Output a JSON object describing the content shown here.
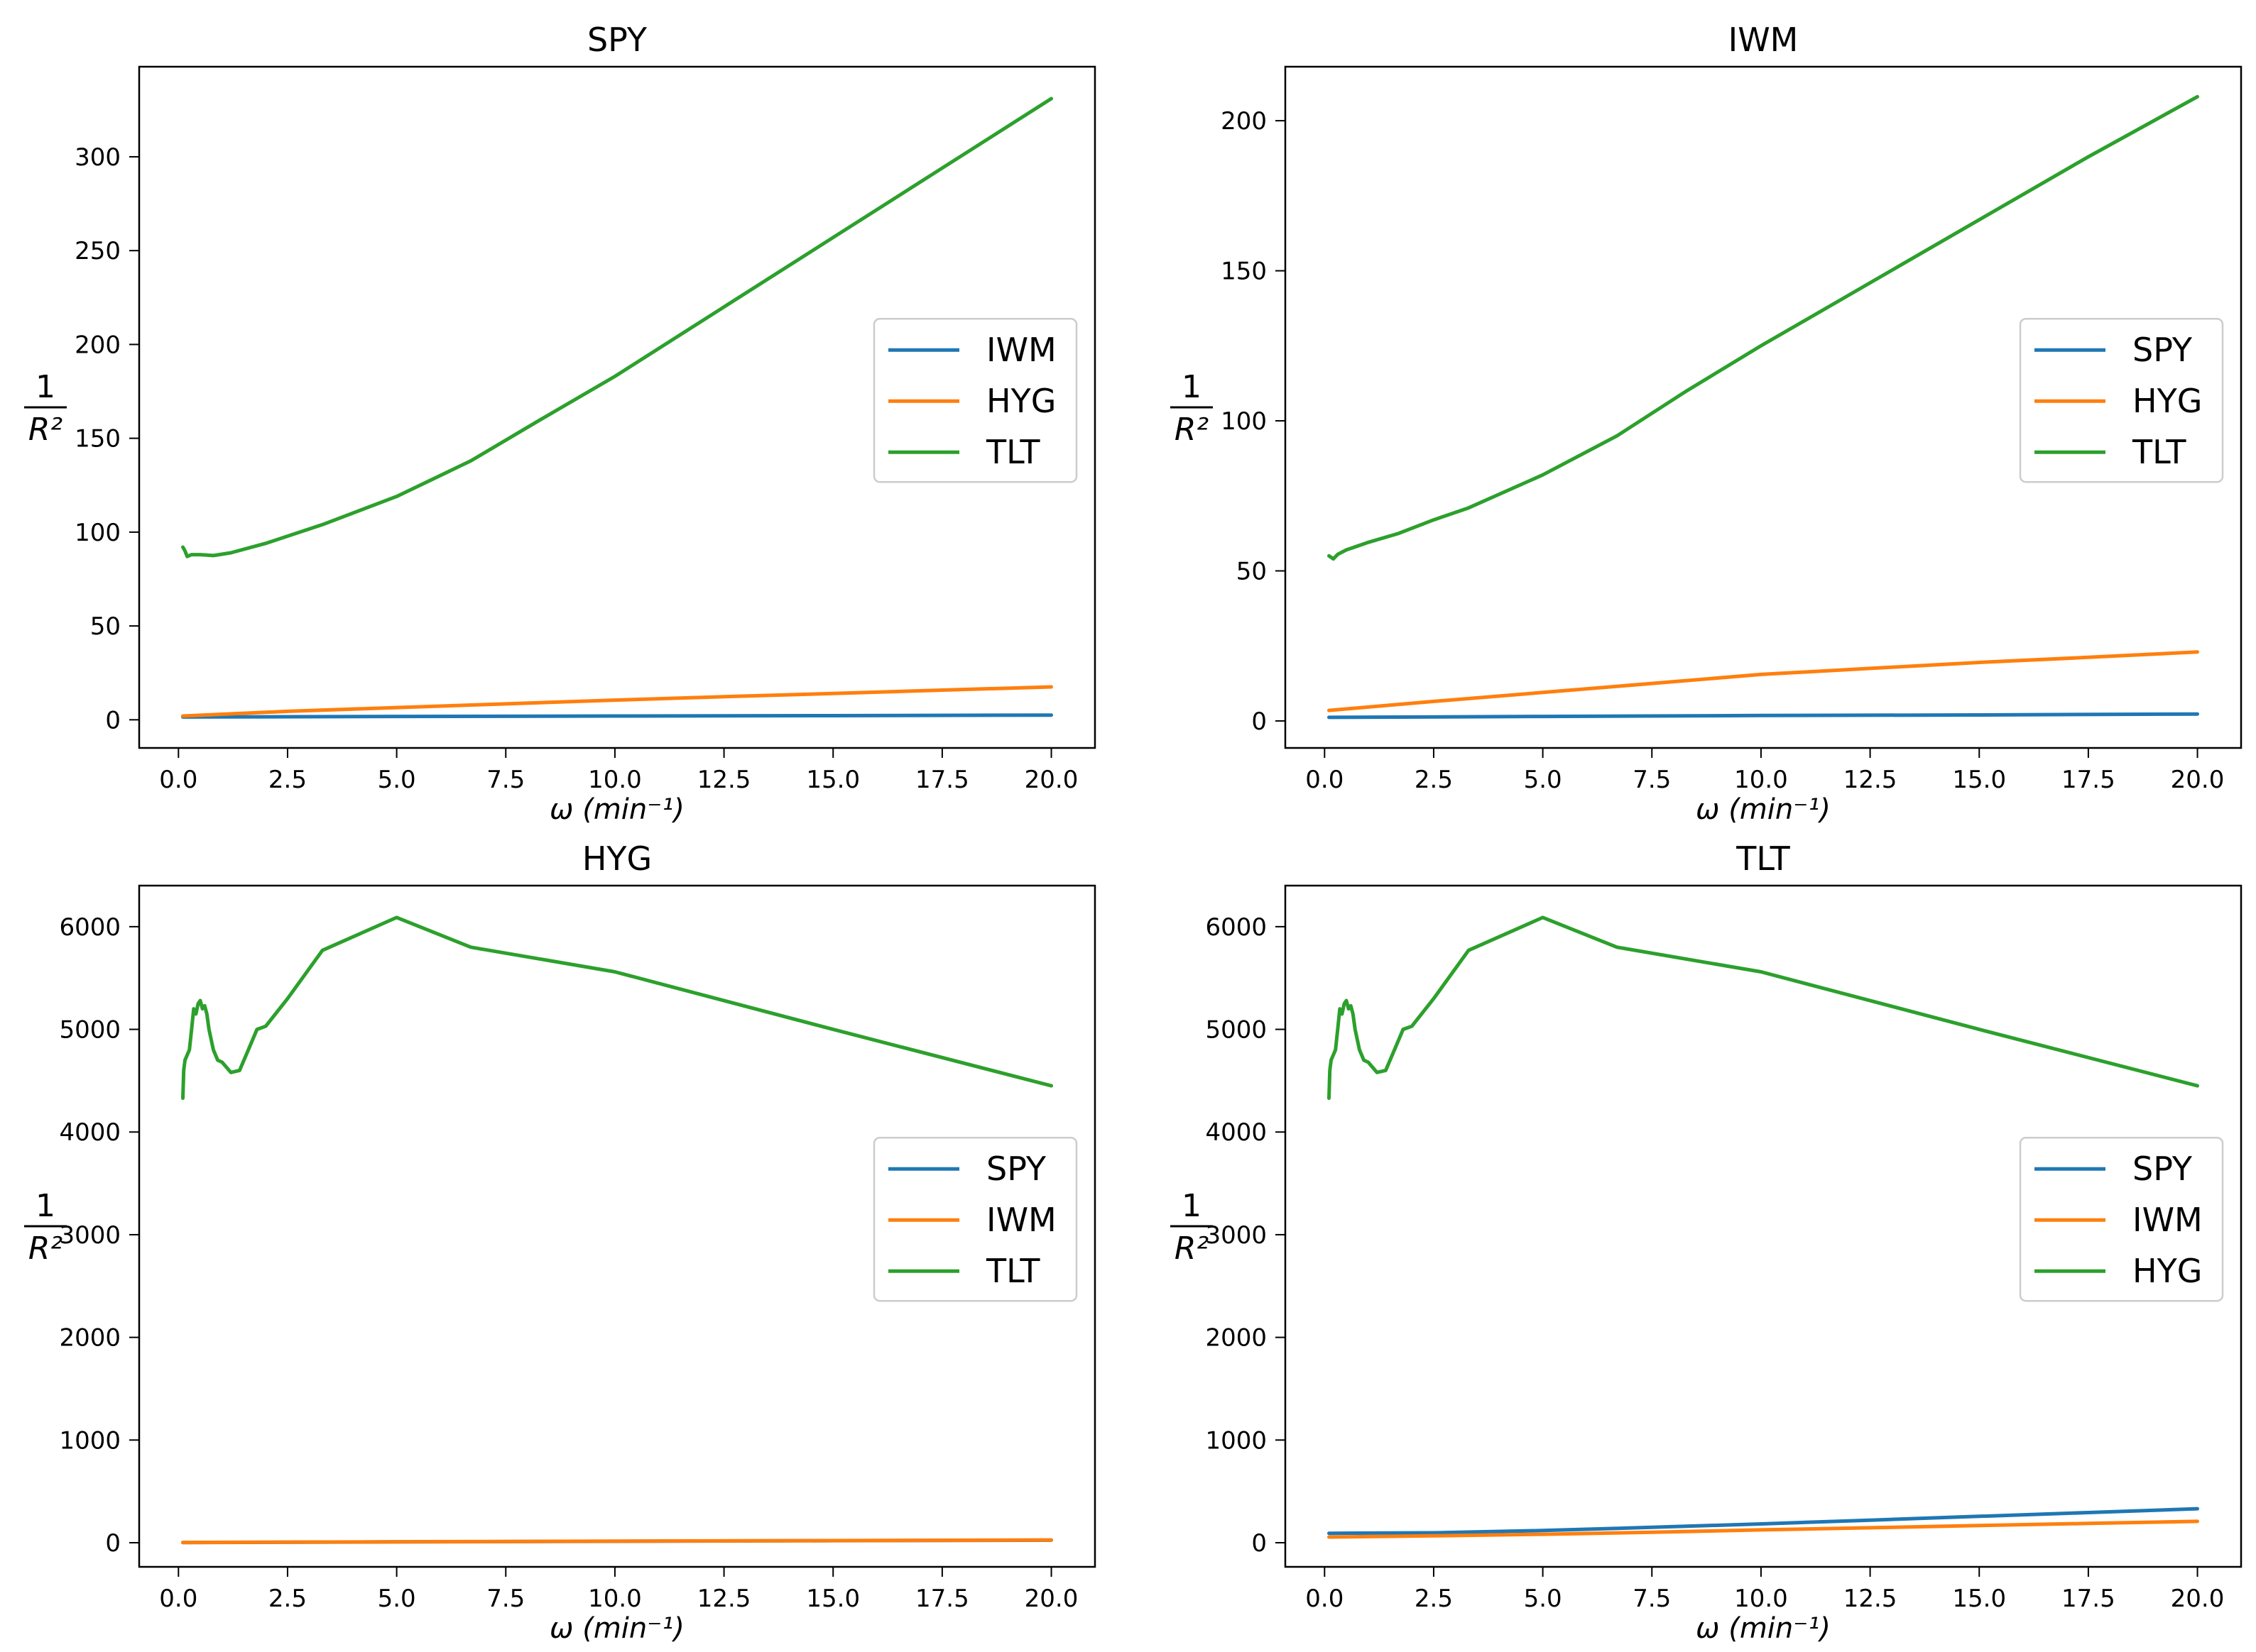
{
  "figure": {
    "title": ""
  },
  "colors": {
    "blue": "#1f77b4",
    "orange": "#ff7f0e",
    "green": "#2ca02c"
  },
  "chart_data": [
    {
      "type": "line",
      "title": "SPY",
      "xlabel": "ω (min⁻¹)",
      "ylabel": "1/R²",
      "xlim": [
        -0.9,
        21.0
      ],
      "ylim": [
        -15,
        348
      ],
      "xticks": [
        "0.0",
        "2.5",
        "5.0",
        "7.5",
        "10.0",
        "12.5",
        "15.0",
        "17.5",
        "20.0"
      ],
      "yticks": [
        "0",
        "50",
        "100",
        "150",
        "200",
        "250",
        "300"
      ],
      "legend_position": "center-right",
      "series": [
        {
          "name": "IWM",
          "color": "#1f77b4",
          "x": [
            0.1,
            5,
            10,
            15,
            20
          ],
          "y": [
            1.5,
            1.8,
            2.0,
            2.2,
            2.5
          ]
        },
        {
          "name": "HYG",
          "color": "#ff7f0e",
          "x": [
            0.1,
            2.5,
            5,
            7.5,
            10,
            12.5,
            15,
            17.5,
            20
          ],
          "y": [
            2,
            4.5,
            6.5,
            8.5,
            10.5,
            12.3,
            14,
            15.8,
            17.5
          ]
        },
        {
          "name": "TLT",
          "color": "#2ca02c",
          "x": [
            0.1,
            0.15,
            0.2,
            0.3,
            0.5,
            0.8,
            1.2,
            2.0,
            3.3,
            5.0,
            6.7,
            8.3,
            10.0,
            12.5,
            15.0,
            17.5,
            20.0
          ],
          "y": [
            92,
            90,
            87,
            88,
            88,
            87.5,
            89,
            94,
            104,
            119,
            138,
            160,
            183,
            220,
            257,
            294,
            331
          ]
        }
      ]
    },
    {
      "type": "line",
      "title": "IWM",
      "xlabel": "ω (min⁻¹)",
      "ylabel": "1/R²",
      "xlim": [
        -0.9,
        21.0
      ],
      "ylim": [
        -9,
        218
      ],
      "xticks": [
        "0.0",
        "2.5",
        "5.0",
        "7.5",
        "10.0",
        "12.5",
        "15.0",
        "17.5",
        "20.0"
      ],
      "yticks": [
        "0",
        "50",
        "100",
        "150",
        "200"
      ],
      "legend_position": "center-right",
      "series": [
        {
          "name": "SPY",
          "color": "#1f77b4",
          "x": [
            0.1,
            5,
            10,
            15,
            20
          ],
          "y": [
            1.2,
            1.5,
            1.8,
            2.0,
            2.3
          ]
        },
        {
          "name": "HYG",
          "color": "#ff7f0e",
          "x": [
            0.1,
            2.5,
            5,
            7.5,
            10,
            12.5,
            15,
            17.5,
            20
          ],
          "y": [
            3.5,
            6.5,
            9.5,
            12.5,
            15.5,
            17.5,
            19.5,
            21.2,
            23
          ]
        },
        {
          "name": "TLT",
          "color": "#2ca02c",
          "x": [
            0.1,
            0.2,
            0.3,
            0.5,
            1.0,
            1.7,
            2.5,
            3.3,
            5.0,
            6.7,
            8.3,
            10.0,
            12.5,
            15.0,
            17.5,
            20.0
          ],
          "y": [
            55,
            54,
            55.5,
            57,
            59.5,
            62.5,
            67,
            71,
            82,
            95,
            110,
            125,
            146,
            167,
            188,
            208
          ]
        }
      ]
    },
    {
      "type": "line",
      "title": "HYG",
      "xlabel": "ω (min⁻¹)",
      "ylabel": "1/R²",
      "xlim": [
        -0.9,
        21.0
      ],
      "ylim": [
        -235,
        6400
      ],
      "xticks": [
        "0.0",
        "2.5",
        "5.0",
        "7.5",
        "10.0",
        "12.5",
        "15.0",
        "17.5",
        "20.0"
      ],
      "yticks": [
        "0",
        "1000",
        "2000",
        "3000",
        "4000",
        "5000",
        "6000"
      ],
      "legend_position": "center-right",
      "series": [
        {
          "name": "SPY",
          "color": "#1f77b4",
          "x": [
            0.1,
            5,
            10,
            15,
            20
          ],
          "y": [
            2,
            8,
            14,
            20,
            25
          ]
        },
        {
          "name": "IWM",
          "color": "#ff7f0e",
          "x": [
            0.1,
            5,
            10,
            15,
            20
          ],
          "y": [
            3,
            9,
            15,
            21,
            27
          ]
        },
        {
          "name": "TLT",
          "color": "#2ca02c",
          "x": [
            0.1,
            0.12,
            0.15,
            0.2,
            0.25,
            0.3,
            0.35,
            0.4,
            0.45,
            0.5,
            0.55,
            0.6,
            0.65,
            0.7,
            0.8,
            0.9,
            1.0,
            1.2,
            1.4,
            1.6,
            1.8,
            2.0,
            2.5,
            3.3,
            5.0,
            6.7,
            10.0,
            15.0,
            20.0
          ],
          "y": [
            4330,
            4600,
            4700,
            4750,
            4800,
            5000,
            5200,
            5150,
            5250,
            5280,
            5200,
            5230,
            5150,
            5000,
            4800,
            4700,
            4680,
            4580,
            4600,
            4800,
            5000,
            5030,
            5300,
            5770,
            6090,
            5800,
            5560,
            5000,
            4450
          ]
        }
      ]
    },
    {
      "type": "line",
      "title": "TLT",
      "xlabel": "ω (min⁻¹)",
      "ylabel": "1/R²",
      "xlim": [
        -0.9,
        21.0
      ],
      "ylim": [
        -235,
        6400
      ],
      "xticks": [
        "0.0",
        "2.5",
        "5.0",
        "7.5",
        "10.0",
        "12.5",
        "15.0",
        "17.5",
        "20.0"
      ],
      "yticks": [
        "0",
        "1000",
        "2000",
        "3000",
        "4000",
        "5000",
        "6000"
      ],
      "legend_position": "center-right",
      "series": [
        {
          "name": "SPY",
          "color": "#1f77b4",
          "x": [
            0.1,
            2.5,
            5,
            7.5,
            10,
            12.5,
            15,
            17.5,
            20
          ],
          "y": [
            92,
            97,
            119,
            150,
            183,
            220,
            257,
            294,
            331
          ]
        },
        {
          "name": "IWM",
          "color": "#ff7f0e",
          "x": [
            0.1,
            2.5,
            5,
            7.5,
            10,
            12.5,
            15,
            17.5,
            20
          ],
          "y": [
            55,
            67,
            82,
            102,
            125,
            146,
            167,
            188,
            208
          ]
        },
        {
          "name": "HYG",
          "color": "#2ca02c",
          "x": [
            0.1,
            0.12,
            0.15,
            0.2,
            0.25,
            0.3,
            0.35,
            0.4,
            0.45,
            0.5,
            0.55,
            0.6,
            0.65,
            0.7,
            0.8,
            0.9,
            1.0,
            1.2,
            1.4,
            1.6,
            1.8,
            2.0,
            2.5,
            3.3,
            5.0,
            6.7,
            10.0,
            15.0,
            20.0
          ],
          "y": [
            4330,
            4600,
            4700,
            4750,
            4800,
            5000,
            5200,
            5150,
            5250,
            5280,
            5200,
            5230,
            5150,
            5000,
            4800,
            4700,
            4680,
            4580,
            4600,
            4800,
            5000,
            5030,
            5300,
            5770,
            6090,
            5800,
            5560,
            5000,
            4450
          ]
        }
      ]
    }
  ]
}
